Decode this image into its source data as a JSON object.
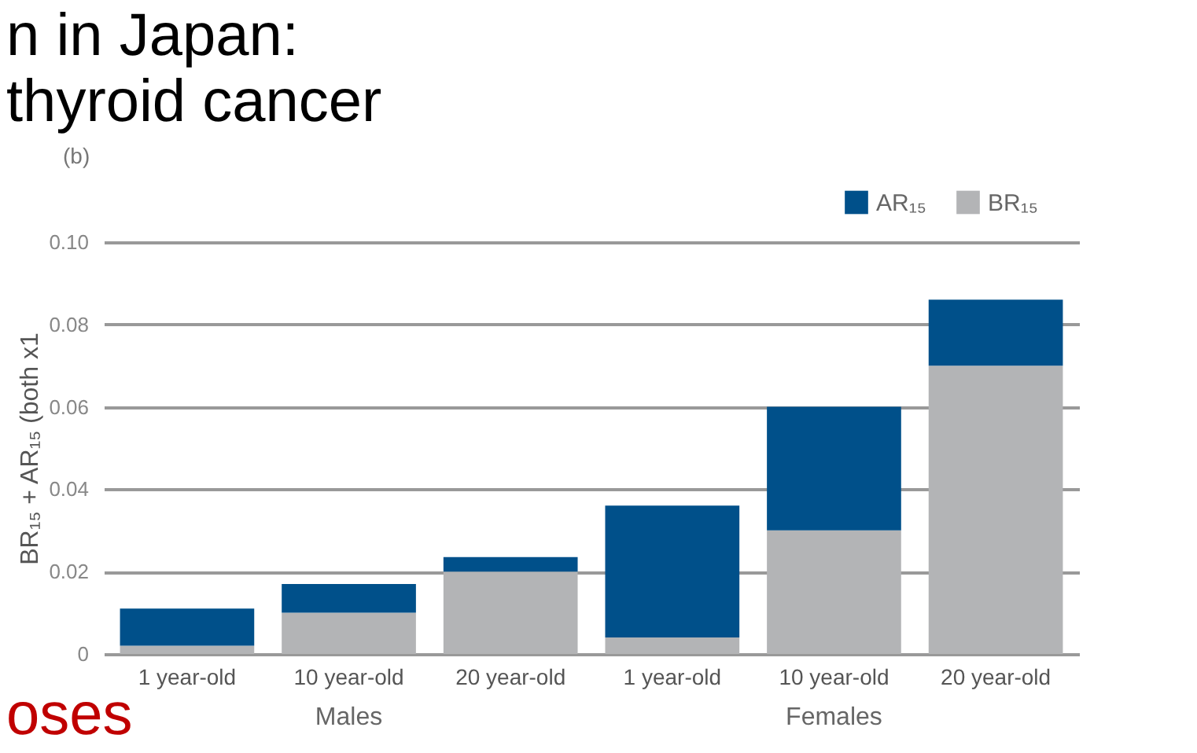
{
  "chart_data": {
    "type": "bar",
    "stacked": true,
    "categories": [
      "1 year-old",
      "10 year-old",
      "20 year-old",
      "1 year-old",
      "10 year-old",
      "20 year-old"
    ],
    "ylabel": "BR₁₅ + AR₁₅ (both x1",
    "series": [
      {
        "name": "BR₁₅",
        "color": "#b3b4b6",
        "values": [
          0.002,
          0.01,
          0.02,
          0.004,
          0.03,
          0.07
        ]
      },
      {
        "name": "AR₁₅",
        "color": "#00508a",
        "values": [
          0.009,
          0.007,
          0.0035,
          0.032,
          0.03,
          0.016
        ]
      }
    ],
    "ylim": [
      0,
      0.1
    ],
    "yticks": [
      0,
      0.02,
      0.04,
      0.06,
      0.08,
      {
        "value": 0.1,
        "label": "0.10"
      }
    ],
    "grid": "y",
    "legend": "top right",
    "annotations": [
      "(b)",
      "n in Japan:",
      "thyroid cancer",
      "oses",
      "Males",
      "Females"
    ]
  }
}
